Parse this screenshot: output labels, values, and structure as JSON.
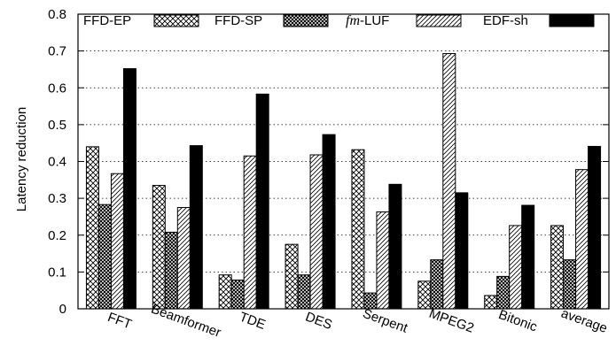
{
  "chart_data": {
    "type": "bar",
    "categories": [
      "FFT",
      "Beamformer",
      "TDE",
      "DES",
      "Serpent",
      "MPEG2",
      "Bitonic",
      "average"
    ],
    "series": [
      {
        "name": "FFD-EP",
        "pattern": "crosshatch",
        "values": [
          0.44,
          0.335,
          0.092,
          0.175,
          0.432,
          0.075,
          0.036,
          0.226
        ]
      },
      {
        "name": "FFD-SP",
        "pattern": "dense-crosshatch",
        "values": [
          0.283,
          0.208,
          0.078,
          0.092,
          0.043,
          0.133,
          0.088,
          0.133
        ]
      },
      {
        "name": "fm-LUF",
        "name_prefix": "fm",
        "name_suffix": "-LUF",
        "pattern": "diagonal",
        "values": [
          0.367,
          0.275,
          0.415,
          0.418,
          0.263,
          0.693,
          0.226,
          0.378
        ]
      },
      {
        "name": "EDF-sh",
        "pattern": "solid",
        "values": [
          0.652,
          0.443,
          0.583,
          0.473,
          0.338,
          0.315,
          0.281,
          0.441
        ]
      }
    ],
    "xlabel": "",
    "ylabel": "Latency reduction",
    "ylim": [
      0,
      0.8
    ],
    "yticks": [
      "0",
      "0.1",
      "0.2",
      "0.3",
      "0.4",
      "0.5",
      "0.6",
      "0.7",
      "0.8"
    ],
    "grid": "horizontal-dotted",
    "legend_position": "top",
    "colors": {
      "ink": "#000000",
      "background": "#ffffff"
    }
  }
}
